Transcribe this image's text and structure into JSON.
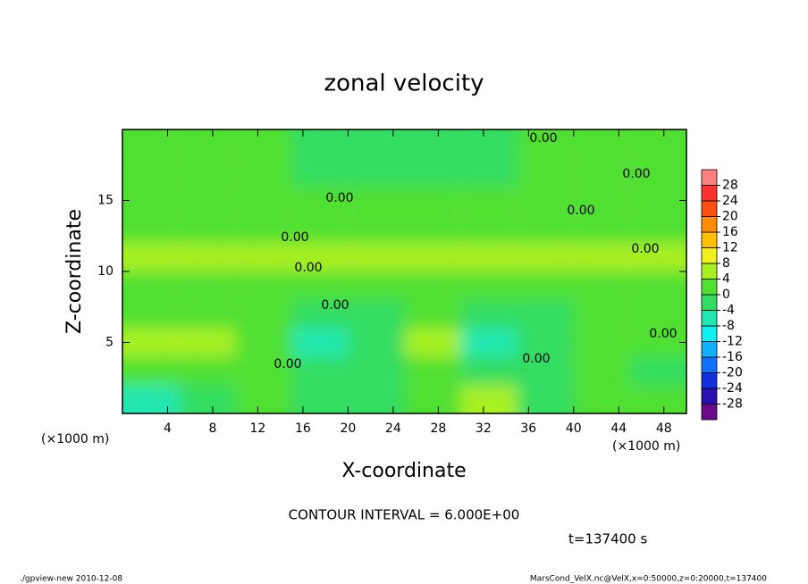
{
  "chart_data": {
    "type": "contour",
    "title": "zonal velocity",
    "xlabel": "X-coordinate",
    "ylabel": "Z-coordinate",
    "x_unit": "(×1000 m)",
    "xlim": [
      0,
      50
    ],
    "ylim": [
      0,
      20
    ],
    "xticks": [
      4,
      8,
      12,
      16,
      20,
      24,
      28,
      32,
      36,
      40,
      44,
      48
    ],
    "yticks": [
      5,
      10,
      15
    ],
    "field": {
      "x": [
        2.5,
        7.5,
        12.5,
        17.5,
        22.5,
        27.5,
        32.5,
        37.5,
        42.5,
        47.5
      ],
      "z": [
        1,
        3,
        5,
        7,
        9,
        11,
        13,
        15,
        17,
        19
      ],
      "values": [
        [
          -6,
          -3,
          1,
          -4,
          -3,
          1,
          6,
          -2,
          1,
          0
        ],
        [
          1,
          2,
          1,
          -2,
          -3,
          1,
          -2,
          -1,
          1,
          -1
        ],
        [
          6,
          5,
          1,
          -6,
          -4,
          5,
          -7,
          -2,
          2,
          0
        ],
        [
          2,
          2,
          2,
          -3,
          -2,
          3,
          -3,
          -1,
          2,
          1
        ],
        [
          2,
          2,
          2,
          1,
          1,
          2,
          2,
          2,
          2,
          2
        ],
        [
          5,
          5,
          5,
          5,
          5,
          5,
          5,
          5,
          5,
          5
        ],
        [
          3,
          3,
          3,
          3,
          3,
          3,
          3,
          3,
          3,
          3
        ],
        [
          2,
          2,
          2,
          2,
          2,
          2,
          2,
          2,
          2,
          2
        ],
        [
          1,
          1,
          1,
          -1,
          -1,
          -1,
          -1,
          1,
          1,
          1
        ],
        [
          1,
          1,
          1,
          -1,
          -1,
          -1,
          -1,
          1,
          1,
          1
        ]
      ]
    },
    "colorbar": {
      "levels": [
        -32,
        -28,
        -24,
        -20,
        -16,
        -12,
        -8,
        -4,
        0,
        4,
        8,
        12,
        16,
        20,
        24,
        28,
        32
      ],
      "colors": [
        "#6a0a8a",
        "#2a10b0",
        "#1030e0",
        "#1070ff",
        "#10b0ff",
        "#10f0f0",
        "#20e8b0",
        "#30dd60",
        "#50e030",
        "#a8f020",
        "#f0f020",
        "#ffc000",
        "#ff8c00",
        "#ff5010",
        "#ff3030",
        "#ff8080"
      ],
      "ticks": [
        -28,
        -24,
        -20,
        -16,
        -12,
        -8,
        -4,
        0,
        4,
        8,
        12,
        16,
        20,
        24,
        28
      ]
    },
    "contour_labels": [
      "0.00",
      "0.00",
      "0.00",
      "0.00",
      "0.00",
      "0.00",
      "0.00",
      "0.00",
      "0.00",
      "0.00",
      "0.00"
    ],
    "contour_interval": "CONTOUR INTERVAL = 6.000E+00",
    "time_label": "t=137400 s",
    "footer_left": "./gpview-new  2010-12-08",
    "footer_right": "MarsCond_VelX.nc@VelX,x=0:50000,z=0:20000,t=137400"
  }
}
